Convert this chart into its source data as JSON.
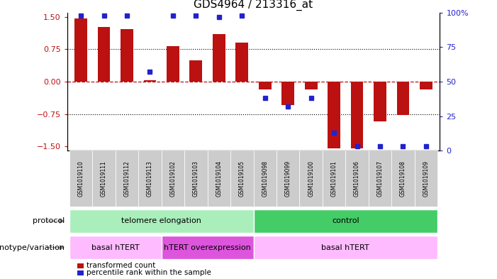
{
  "title": "GDS4964 / 213316_at",
  "samples": [
    "GSM1019110",
    "GSM1019111",
    "GSM1019112",
    "GSM1019113",
    "GSM1019102",
    "GSM1019103",
    "GSM1019104",
    "GSM1019105",
    "GSM1019098",
    "GSM1019099",
    "GSM1019100",
    "GSM1019101",
    "GSM1019106",
    "GSM1019107",
    "GSM1019108",
    "GSM1019109"
  ],
  "bar_values": [
    1.47,
    1.27,
    1.22,
    0.03,
    0.82,
    0.5,
    1.1,
    0.9,
    -0.18,
    -0.55,
    -0.18,
    -1.55,
    -1.55,
    -0.93,
    -0.78,
    -0.18
  ],
  "percentile_ranks": [
    98,
    98,
    98,
    57,
    98,
    98,
    97,
    98,
    38,
    32,
    38,
    13,
    3,
    3,
    3,
    3
  ],
  "bar_color": "#bb1111",
  "blue_color": "#2222cc",
  "ylim": [
    -1.6,
    1.6
  ],
  "right_ylim": [
    0,
    100
  ],
  "right_yticks": [
    0,
    25,
    50,
    75,
    100
  ],
  "right_yticklabels": [
    "0",
    "25",
    "50",
    "75",
    "100%"
  ],
  "left_yticks": [
    -1.5,
    -0.75,
    0,
    0.75,
    1.5
  ],
  "dotted_lines": [
    -0.75,
    0.75
  ],
  "protocol_groups": [
    {
      "label": "telomere elongation",
      "start": 0,
      "end": 8,
      "color": "#aaeebb"
    },
    {
      "label": "control",
      "start": 8,
      "end": 16,
      "color": "#44cc66"
    }
  ],
  "genotype_groups": [
    {
      "label": "basal hTERT",
      "start": 0,
      "end": 4,
      "color": "#ffbbff"
    },
    {
      "label": "hTERT overexpression",
      "start": 4,
      "end": 8,
      "color": "#dd55dd"
    },
    {
      "label": "basal hTERT",
      "start": 8,
      "end": 16,
      "color": "#ffbbff"
    }
  ],
  "legend_items": [
    {
      "color": "#bb1111",
      "label": "transformed count"
    },
    {
      "color": "#2222cc",
      "label": "percentile rank within the sample"
    }
  ],
  "protocol_label": "protocol",
  "genotype_label": "genotype/variation",
  "background_color": "#ffffff"
}
